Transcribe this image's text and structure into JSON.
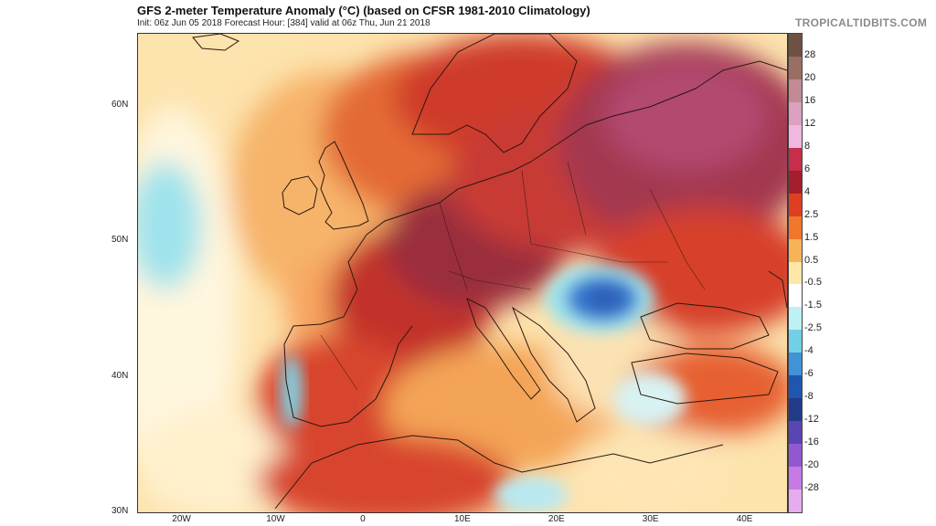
{
  "header": {
    "title": "GFS 2-meter Temperature Anomaly (°C) (based on CFSR 1981-2010 Climatology)",
    "subtitle": "Init: 06z Jun 05 2018   Forecast Hour: [384]   valid at 06z Thu, Jun 21 2018",
    "brand": "TROPICALTIDBITS.COM"
  },
  "axes": {
    "lat_labels": [
      {
        "value": 60,
        "text": "60N"
      },
      {
        "value": 50,
        "text": "50N"
      },
      {
        "value": 40,
        "text": "40N"
      },
      {
        "value": 30,
        "text": "30N"
      }
    ],
    "lon_labels": [
      {
        "value": -20,
        "text": "20W"
      },
      {
        "value": -10,
        "text": "10W"
      },
      {
        "value": 0,
        "text": "0"
      },
      {
        "value": 10,
        "text": "10E"
      },
      {
        "value": 20,
        "text": "20E"
      },
      {
        "value": 30,
        "text": "30E"
      },
      {
        "value": 40,
        "text": "40E"
      }
    ],
    "lon_range": [
      -24.5,
      44.5
    ],
    "lat_range": [
      30,
      65.3
    ]
  },
  "colorbar": {
    "labels": [
      "28",
      "20",
      "16",
      "12",
      "8",
      "6",
      "4",
      "2.5",
      "1.5",
      "0.5",
      "-0.5",
      "-1.5",
      "-2.5",
      "-4",
      "-6",
      "-8",
      "-12",
      "-16",
      "-20",
      "-28"
    ],
    "colors": [
      "#6e5142",
      "#9a6e62",
      "#c28a94",
      "#dca0c0",
      "#f0b8e0",
      "#c62e4a",
      "#a51e2b",
      "#e03e22",
      "#f1772b",
      "#f8b35a",
      "#fde6a6",
      "#ffffff",
      "#bdf2f5",
      "#72d0e6",
      "#3f93d6",
      "#1f56b0",
      "#233a87",
      "#5a45b4",
      "#9258cf",
      "#c67ae3",
      "#e7abf1"
    ]
  },
  "legend_colors": {
    "warm_strong": "#a0233a",
    "warm": "#d7402c",
    "warm_mild": "#ee8040",
    "neutral_warm": "#f9cf8a",
    "neutral": "#fff6de",
    "cool": "#9fe3ec",
    "cold": "#3b7ed2",
    "purple_hot": "#9a3a68",
    "land_outline": "#2a1810"
  }
}
